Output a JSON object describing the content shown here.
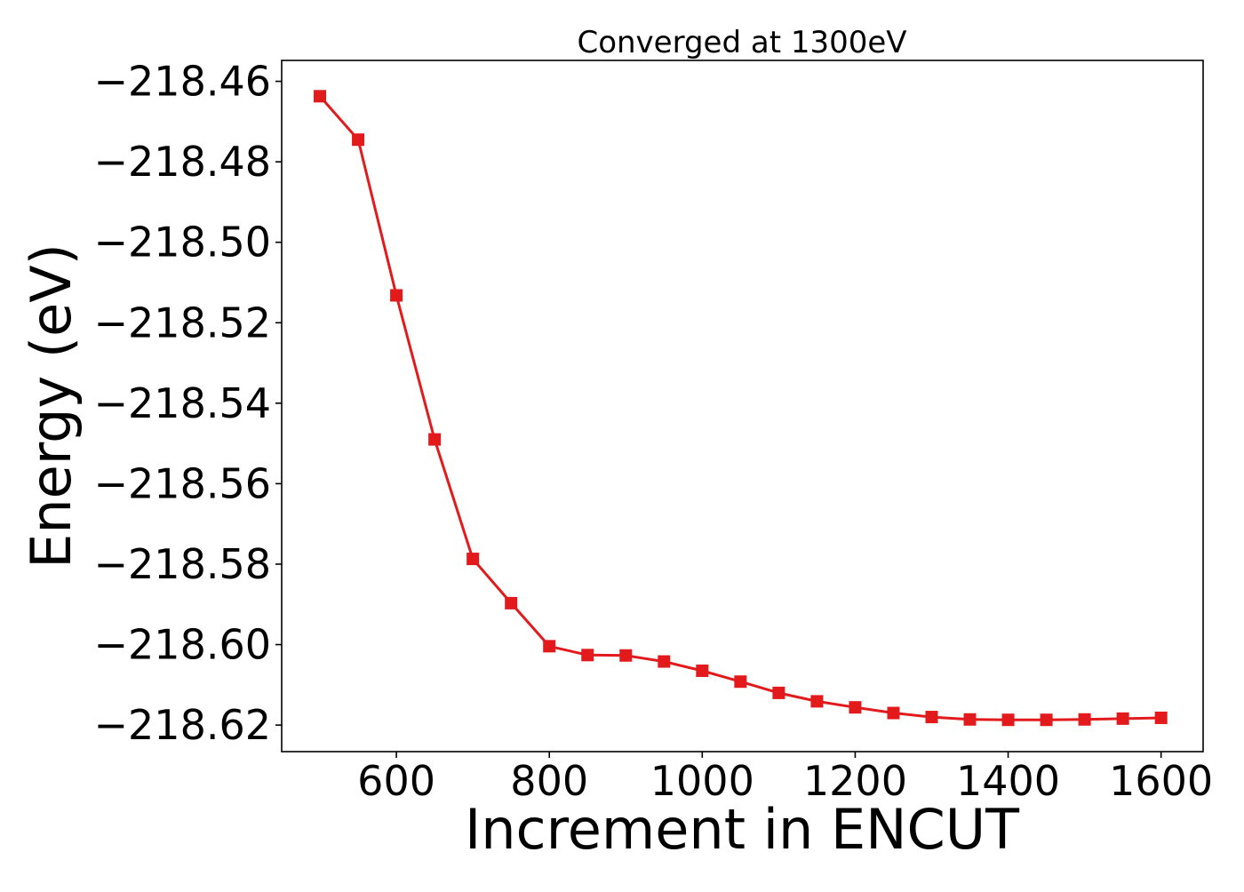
{
  "chart_data": {
    "type": "line",
    "title": "Converged at 1300eV",
    "xlabel": "Increment in ENCUT",
    "ylabel": "Energy (eV)",
    "xlim": [
      450,
      1655
    ],
    "ylim": [
      -218.6266,
      -218.4548
    ],
    "xticks": [
      600,
      800,
      1000,
      1200,
      1400,
      1600
    ],
    "yticks": [
      -218.46,
      -218.48,
      -218.5,
      -218.52,
      -218.54,
      -218.56,
      -218.58,
      -218.6,
      -218.62
    ],
    "grid": false,
    "legend": "none",
    "series": [
      {
        "color": "#e31a1c",
        "marker": "square",
        "x": [
          500,
          550,
          600,
          650,
          700,
          750,
          800,
          850,
          900,
          950,
          1000,
          1050,
          1100,
          1150,
          1200,
          1250,
          1300,
          1350,
          1400,
          1450,
          1500,
          1550,
          1600
        ],
        "y": [
          -218.4637,
          -218.4745,
          -218.5132,
          -218.549,
          -218.5787,
          -218.5897,
          -218.6004,
          -218.6026,
          -218.6027,
          -218.6042,
          -218.6065,
          -218.6092,
          -218.612,
          -218.6141,
          -218.6156,
          -218.617,
          -218.618,
          -218.6186,
          -218.6187,
          -218.6187,
          -218.6186,
          -218.6184,
          -218.6182
        ]
      }
    ]
  }
}
